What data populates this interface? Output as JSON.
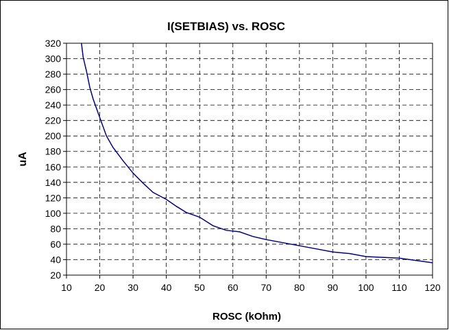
{
  "chart_data": {
    "type": "line",
    "title": "I(SETBIAS) vs. ROSC",
    "xlabel": "ROSC (kOhm)",
    "ylabel": "uA",
    "xlim": [
      10,
      120
    ],
    "ylim": [
      20,
      320
    ],
    "xticks": [
      10,
      20,
      30,
      40,
      50,
      60,
      70,
      80,
      90,
      100,
      110,
      120
    ],
    "yticks": [
      20,
      40,
      60,
      80,
      100,
      120,
      140,
      160,
      180,
      200,
      220,
      240,
      260,
      280,
      300,
      320
    ],
    "grid": true,
    "grid_style": "dashed",
    "legend": "none",
    "series": [
      {
        "color": "#000080",
        "x": [
          14.5,
          15,
          16,
          17,
          18,
          20,
          22,
          24,
          27,
          30,
          33,
          36,
          40,
          43,
          46,
          50,
          54,
          58,
          62,
          66,
          70,
          75,
          80,
          85,
          90,
          95,
          100,
          110,
          115,
          120
        ],
        "y": [
          320,
          302,
          284,
          263,
          248,
          224,
          200,
          185,
          168,
          152,
          139,
          127,
          118,
          109,
          101,
          95,
          84,
          78,
          76,
          70,
          66,
          62,
          58,
          54,
          50,
          48,
          44,
          42,
          39,
          36
        ]
      }
    ]
  }
}
